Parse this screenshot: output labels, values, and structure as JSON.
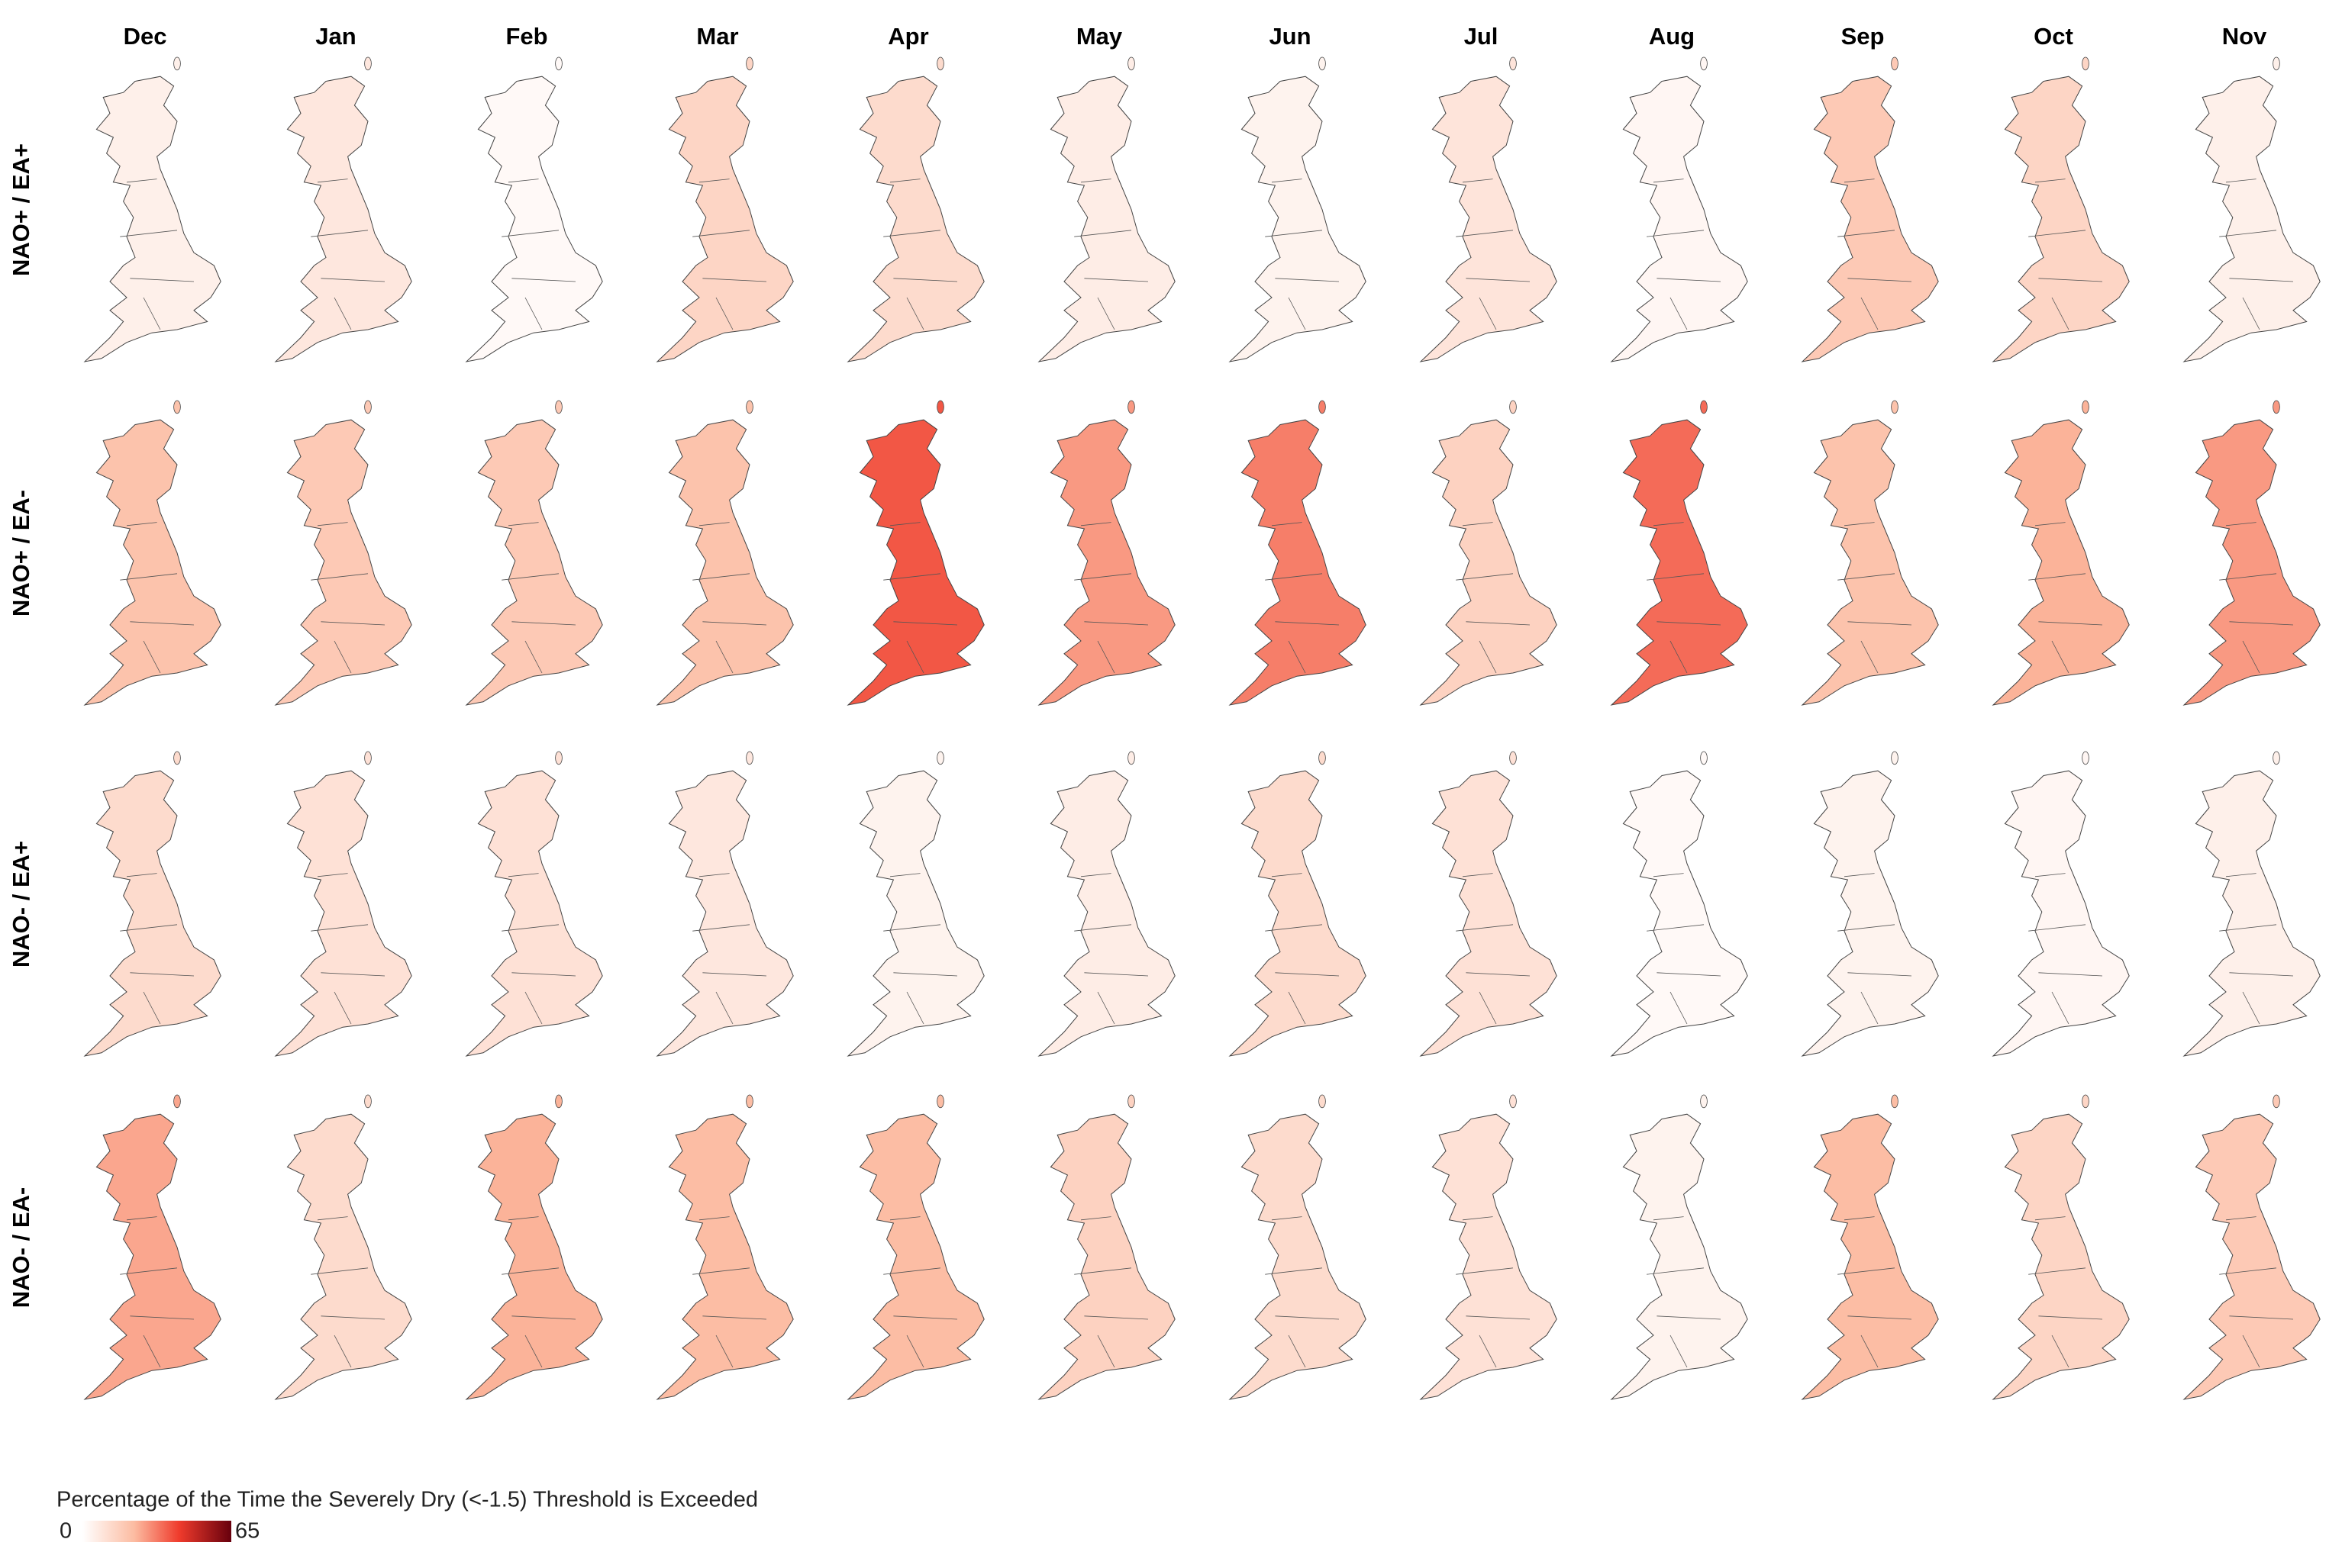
{
  "chart_data": {
    "type": "map-grid",
    "columns": [
      "Dec",
      "Jan",
      "Feb",
      "Mar",
      "Apr",
      "May",
      "Jun",
      "Jul",
      "Aug",
      "Sep",
      "Oct",
      "Nov"
    ],
    "rows": [
      "NAO+ / EA+",
      "NAO+ / EA-",
      "NAO- / EA+",
      "NAO- / EA-"
    ],
    "panels": [
      [
        5,
        8,
        2,
        14,
        12,
        6,
        4,
        9,
        3,
        18,
        14,
        5
      ],
      [
        20,
        18,
        18,
        20,
        38,
        28,
        32,
        15,
        35,
        20,
        24,
        28
      ],
      [
        12,
        10,
        10,
        8,
        4,
        6,
        12,
        10,
        2,
        4,
        3,
        5
      ],
      [
        26,
        12,
        24,
        22,
        22,
        15,
        12,
        10,
        4,
        22,
        14,
        18
      ]
    ],
    "colorbar": {
      "title": "Percentage of the Time the Severely Dry (<-1.5) Threshold is Exceeded",
      "min": 0,
      "max": 65
    }
  }
}
